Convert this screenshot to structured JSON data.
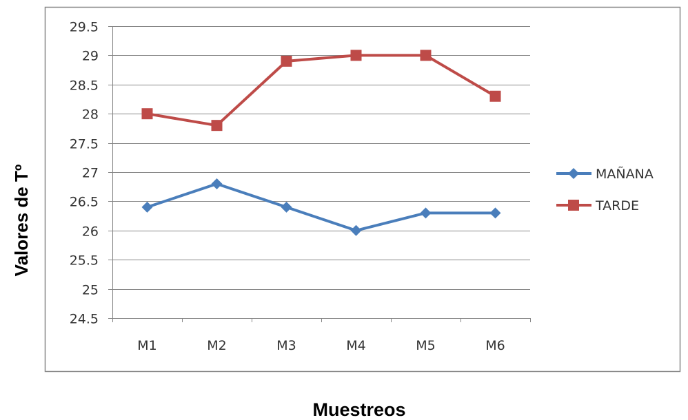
{
  "chart_data": {
    "type": "line",
    "title": "",
    "xlabel": "Muestreos",
    "ylabel": "Valores  de Tº",
    "categories": [
      "M1",
      "M2",
      "M3",
      "M4",
      "M5",
      "M6"
    ],
    "ylim": [
      24.5,
      29.5
    ],
    "yticks": [
      "24.5",
      "25",
      "25.5",
      "26",
      "26.5",
      "27",
      "27.5",
      "28",
      "28.5",
      "29",
      "29.5"
    ],
    "grid": true,
    "legend_position": "right",
    "series": [
      {
        "name": "MAÑANA",
        "values": [
          26.4,
          26.8,
          26.4,
          26.0,
          26.3,
          26.3
        ],
        "color": "#4a7ebb",
        "marker": "diamond"
      },
      {
        "name": "TARDE",
        "values": [
          28.0,
          27.8,
          28.9,
          29.0,
          29.0,
          28.3
        ],
        "color": "#be4b48",
        "marker": "square"
      }
    ]
  }
}
